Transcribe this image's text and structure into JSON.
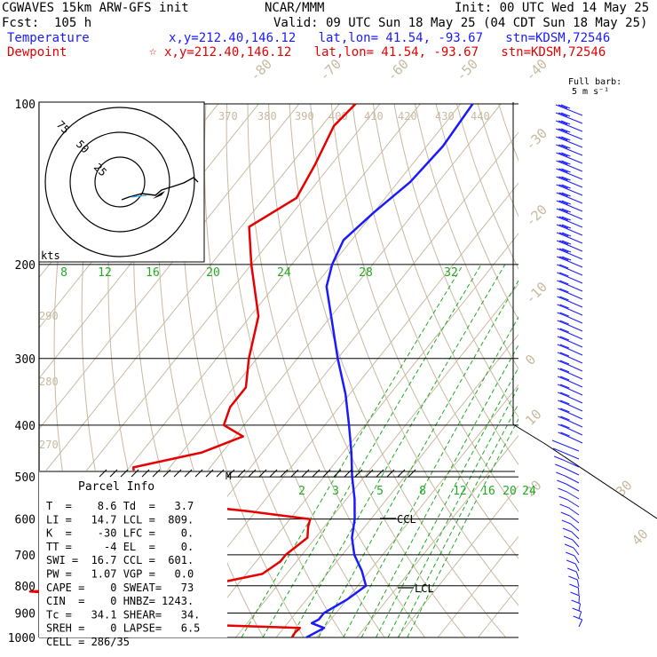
{
  "header": {
    "model": "CGWAVES 15km ARW-GFS init",
    "org": "NCAR/MMM",
    "init": "Init: 00 UTC Wed 14 May 25",
    "fcst": "Fcst:  105 h",
    "valid": "Valid: 09 UTC Sun 18 May 25 (04 CDT Sun 18 May 25)",
    "temperature_label": "Temperature",
    "temperature_loc": "x,y=212.40,146.12   lat,lon= 41.54, -93.67   stn=KDSM,72546",
    "dewpoint_label": "Dewpoint",
    "dewpoint_marker": "☆",
    "dewpoint_loc": "x,y=212.40,146.12   lat,lon= 41.54, -93.67   stn=KDSM,72546"
  },
  "wind_legend": {
    "line1": "Full barb:",
    "line2": "5 m s⁻¹"
  },
  "hodograph": {
    "units": "kts",
    "ring_labels": [
      "25",
      "50",
      "75"
    ]
  },
  "parcel_info": {
    "title": "Parcel Info",
    "rows": [
      "T  =    8.6 Td  =   3.7",
      "LI =   14.7 LCL =  809.",
      "K  =    -30 LFC =    0.",
      "TT =     -4 EL  =    0.",
      "SWI =  16.7 CCL =  601.",
      "PW =   1.07 VGP =   0.0",
      "CAPE =    0 SWEAT=   73",
      "CIN  =    0 HNBZ= 1243.",
      "Tc =   34.1 SHEAR=   34.",
      "SREH =    0 LAPSE=   6.5",
      "CELL = 286/35"
    ]
  },
  "annotations": {
    "ccl": "CCL",
    "lcl": "LCL",
    "m_marker": "M"
  },
  "colors": {
    "temperature": "#1a1aff",
    "dewpoint": "#e60000",
    "isotherm": "#c8b9a0",
    "mixing_ratio": "#22aa22",
    "axes": "#000000"
  },
  "chart_data": {
    "type": "line",
    "diagram": "skew-T log-P",
    "y_axis": {
      "scale": "log",
      "ticks": [
        "100",
        "200",
        "300",
        "400",
        "500",
        "600",
        "700",
        "800",
        "900",
        "1000"
      ],
      "range": [
        1000,
        100
      ]
    },
    "isotherm_labels": [
      "-80",
      "-70",
      "-60",
      "-50",
      "-40",
      "-30",
      "-20",
      "-10",
      "0",
      "10",
      "20",
      "30",
      "40"
    ],
    "dry_adiabat_labels": [
      "370",
      "380",
      "390",
      "400",
      "410",
      "420",
      "430",
      "440",
      "290",
      "280",
      "270"
    ],
    "mixing_ratio_labels_upper": [
      "8",
      "12",
      "16",
      "20",
      "24",
      "28",
      "32"
    ],
    "mixing_ratio_labels_lower": [
      "2",
      "3",
      "5",
      "8",
      "12",
      "16",
      "20",
      "24"
    ],
    "series": [
      {
        "name": "Temperature",
        "points": [
          [
            1000,
            7.5
          ],
          [
            960,
            10
          ],
          [
            940,
            6
          ],
          [
            925,
            7
          ],
          [
            900,
            7
          ],
          [
            850,
            10
          ],
          [
            800,
            12
          ],
          [
            750,
            8
          ],
          [
            700,
            3
          ],
          [
            650,
            -1
          ],
          [
            600,
            -4
          ],
          [
            550,
            -8
          ],
          [
            500,
            -13
          ],
          [
            450,
            -18
          ],
          [
            400,
            -24
          ],
          [
            350,
            -31
          ],
          [
            300,
            -40
          ],
          [
            250,
            -50
          ],
          [
            220,
            -57
          ],
          [
            200,
            -60
          ],
          [
            180,
            -62
          ],
          [
            160,
            -60
          ],
          [
            140,
            -57
          ],
          [
            120,
            -56
          ],
          [
            100,
            -57
          ]
        ]
      },
      {
        "name": "Dewpoint",
        "points": [
          [
            1000,
            4
          ],
          [
            980,
            3.7
          ],
          [
            960,
            4
          ],
          [
            925,
            -60
          ],
          [
            900,
            -62
          ],
          [
            880,
            -50
          ],
          [
            860,
            -25
          ],
          [
            820,
            -70
          ],
          [
            790,
            -25
          ],
          [
            760,
            -16
          ],
          [
            720,
            -14
          ],
          [
            700,
            -14
          ],
          [
            650,
            -12
          ],
          [
            620,
            -14
          ],
          [
            600,
            -15
          ],
          [
            580,
            -32
          ],
          [
            560,
            -52
          ],
          [
            540,
            -58
          ],
          [
            520,
            -65
          ],
          [
            500,
            -67
          ],
          [
            480,
            -69
          ],
          [
            450,
            -55
          ],
          [
            420,
            -48
          ],
          [
            400,
            -55
          ],
          [
            370,
            -57
          ],
          [
            340,
            -57
          ],
          [
            300,
            -62
          ],
          [
            250,
            -68
          ],
          [
            200,
            -80
          ],
          [
            170,
            -88
          ],
          [
            150,
            -82
          ],
          [
            130,
            -84
          ],
          [
            110,
            -87
          ],
          [
            100,
            -86
          ]
        ]
      }
    ]
  }
}
